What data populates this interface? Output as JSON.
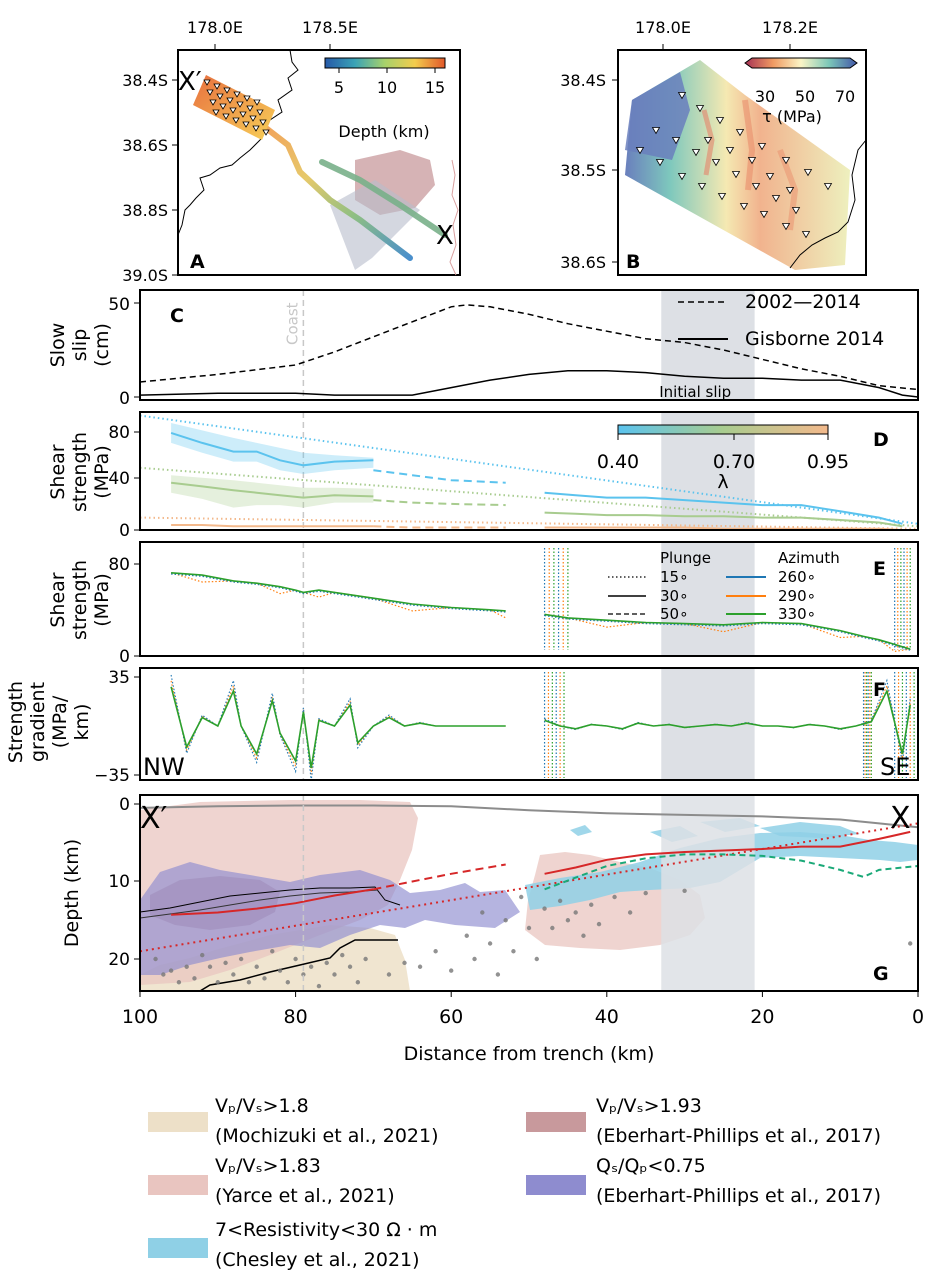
{
  "figure": {
    "panel_letters": [
      "A",
      "B",
      "C",
      "D",
      "E",
      "F",
      "G"
    ],
    "colors": {
      "gisborne": "#000000",
      "lambda_040": "#5bc3ee",
      "lambda_070": "#a8cc8f",
      "lambda_095": "#f3b98c",
      "az260": "#1f77b4",
      "az290": "#ff7f0e",
      "az330": "#2ca02c",
      "trench_line": "#8c8c8c",
      "interface_red": "#d62728",
      "interface_green": "#1aa978",
      "initial_slip_band": "#dde0e5",
      "vpvs18": "#ede0c8",
      "vpvs183": "#e9c5c0",
      "vpvs193": "#c8999c",
      "qsqp": "#8e8ccf",
      "resistivity": "#8fd0e6"
    }
  },
  "maps": {
    "A": {
      "xticks": [
        "178.0E",
        "178.5E"
      ],
      "yticks": [
        "38.4S",
        "38.6S",
        "38.8S",
        "39.0S"
      ],
      "colorbar_ticks": [
        "5",
        "10",
        "15"
      ],
      "colorbar_label": "Depth (km)",
      "endpoint_start": "X′",
      "endpoint_end": "X"
    },
    "B": {
      "xticks": [
        "178.0E",
        "178.2E"
      ],
      "yticks": [
        "38.4S",
        "38.5S",
        "38.6S"
      ],
      "colorbar_ticks": [
        "30",
        "50",
        "70"
      ],
      "colorbar_label": "τ (MPa)"
    }
  },
  "chart_data": [
    {
      "panel": "C",
      "type": "line",
      "ylabel": [
        "Slow",
        "slip",
        "(cm)"
      ],
      "x_axis": "Distance from trench (km)",
      "xlim": [
        100,
        0
      ],
      "ylim": [
        0,
        50
      ],
      "yticks": [
        "0",
        "50"
      ],
      "annotations": {
        "coast": "Coast",
        "initial_slip": "Initial slip"
      },
      "coast_x": 79,
      "initial_slip_range": [
        21,
        33
      ],
      "legend_position": "top-right",
      "series": [
        {
          "name": "2002—2014",
          "style": "dashed",
          "x": [
            100,
            90,
            80,
            75,
            70,
            65,
            60,
            58,
            55,
            50,
            45,
            40,
            35,
            30,
            25,
            20,
            15,
            10,
            5,
            0
          ],
          "y": [
            8,
            12,
            17,
            24,
            32,
            40,
            48,
            49,
            48,
            44,
            39,
            35,
            31,
            29,
            25,
            20,
            15,
            11,
            6,
            4
          ]
        },
        {
          "name": "Gisborne 2014",
          "style": "solid",
          "x": [
            100,
            90,
            80,
            75,
            65,
            60,
            55,
            50,
            45,
            40,
            35,
            30,
            25,
            20,
            15,
            10,
            5,
            2,
            0
          ],
          "y": [
            1,
            2,
            2,
            1,
            1,
            5,
            9,
            12,
            14,
            14,
            13,
            11,
            10,
            10,
            9,
            9,
            5,
            1,
            0
          ]
        }
      ]
    },
    {
      "panel": "D",
      "type": "line",
      "ylabel": [
        "Shear",
        "strength",
        "(MPa)"
      ],
      "xlim": [
        100,
        0
      ],
      "ylim": [
        0,
        90
      ],
      "yticks": [
        "0",
        "40",
        "80"
      ],
      "colorbar_ticks": [
        "0.40",
        "0.70",
        "0.95"
      ],
      "colorbar_label": "λ",
      "series": [
        {
          "lambda": "0.40",
          "x_solid_a": [
            96,
            92,
            88,
            85,
            82,
            79,
            75,
            70
          ],
          "y_solid_a": [
            78,
            70,
            63,
            63,
            56,
            52,
            55,
            56
          ],
          "x_dashed_a": [
            70,
            65,
            60,
            53
          ],
          "y_dashed_a": [
            48,
            44,
            40,
            38
          ],
          "x_solid_b": [
            48,
            44,
            40,
            35,
            30,
            25,
            20,
            15,
            10,
            5,
            2
          ],
          "y_solid_b": [
            30,
            28,
            26,
            26,
            24,
            22,
            20,
            20,
            15,
            10,
            5
          ],
          "x_dotted": [
            100,
            0
          ],
          "y_dotted": [
            92,
            5
          ],
          "band_upper": [
            86,
            80,
            74,
            70,
            66,
            62,
            60,
            58
          ],
          "band_lower": [
            70,
            62,
            55,
            55,
            48,
            45,
            48,
            50
          ]
        },
        {
          "lambda": "0.70",
          "x_solid_a": [
            96,
            92,
            88,
            85,
            82,
            79,
            75,
            70
          ],
          "y_solid_a": [
            38,
            35,
            32,
            30,
            28,
            26,
            28,
            27
          ],
          "x_dashed_a": [
            70,
            65,
            60,
            53
          ],
          "y_dashed_a": [
            24,
            22,
            21,
            20
          ],
          "x_solid_b": [
            48,
            44,
            40,
            35,
            30,
            25,
            20,
            15,
            10,
            5,
            2
          ],
          "y_solid_b": [
            14,
            13,
            12,
            12,
            11,
            11,
            10,
            10,
            8,
            6,
            3
          ],
          "x_dotted": [
            100,
            0
          ],
          "y_dotted": [
            50,
            3
          ],
          "band_upper": [
            44,
            42,
            40,
            38,
            36,
            34,
            34,
            33
          ],
          "band_lower": [
            30,
            25,
            18,
            20,
            20,
            18,
            22,
            22
          ]
        },
        {
          "lambda": "0.95",
          "x_solid_a": [
            96,
            92,
            88,
            85,
            82,
            79,
            75,
            70
          ],
          "y_solid_a": [
            4,
            4,
            3,
            3,
            3,
            3,
            3,
            3
          ],
          "x_dashed_a": [
            70,
            65,
            60,
            53
          ],
          "y_dashed_a": [
            3,
            2,
            2,
            2
          ],
          "x_solid_b": [
            48,
            44,
            40,
            35,
            30,
            25,
            20,
            15,
            10,
            5,
            2
          ],
          "y_solid_b": [
            2,
            2,
            2,
            2,
            2,
            1,
            1,
            1,
            1,
            1,
            0
          ],
          "x_dotted": [
            100,
            0
          ],
          "y_dotted": [
            10,
            1
          ]
        }
      ]
    },
    {
      "panel": "E",
      "type": "line",
      "ylabel": [
        "Shear",
        "strength",
        "(MPa)"
      ],
      "xlim": [
        100,
        0
      ],
      "ylim": [
        0,
        90
      ],
      "yticks": [
        "0",
        "80"
      ],
      "legend": {
        "plunge_title": "Plunge",
        "plunge": [
          "15∘",
          "30∘",
          "50∘"
        ],
        "azimuth_title": "Azimuth",
        "azimuth": [
          "260∘",
          "290∘",
          "330∘"
        ]
      },
      "x": [
        96,
        92,
        88,
        85,
        82,
        80,
        79,
        77,
        75,
        70,
        65,
        60,
        55,
        53,
        48,
        45,
        40,
        35,
        30,
        25,
        20,
        15,
        10,
        7,
        5,
        3,
        1
      ],
      "y": [
        72,
        70,
        65,
        63,
        60,
        57,
        55,
        57,
        55,
        50,
        45,
        42,
        40,
        39,
        36,
        33,
        31,
        29,
        28,
        27,
        29,
        28,
        22,
        17,
        14,
        10,
        6
      ]
    },
    {
      "panel": "F",
      "type": "line",
      "ylabel": [
        "Strength",
        "gradient",
        "(MPa/",
        "km)"
      ],
      "xlim": [
        100,
        0
      ],
      "ylim": [
        -35,
        35
      ],
      "yticks": [
        "35",
        "−35"
      ],
      "direction_labels": {
        "left": "NW",
        "right": "SE"
      },
      "x": [
        96,
        94,
        92,
        90,
        88,
        87,
        85,
        83,
        82,
        80,
        79,
        78,
        77,
        75,
        73,
        72,
        70,
        68,
        66,
        64,
        62,
        60,
        58,
        53,
        48,
        46,
        44,
        42,
        40,
        38,
        36,
        34,
        32,
        30,
        28,
        26,
        24,
        22,
        20,
        18,
        16,
        14,
        12,
        10,
        8,
        6,
        4,
        2,
        1
      ],
      "y": [
        28,
        -15,
        6,
        0,
        25,
        0,
        -20,
        18,
        -5,
        -25,
        10,
        -30,
        4,
        0,
        15,
        -12,
        0,
        6,
        0,
        2,
        0,
        0,
        0,
        0,
        4,
        0,
        -2,
        1,
        0,
        -2,
        2,
        0,
        1,
        -1,
        0,
        1,
        0,
        2,
        0,
        0,
        -1,
        1,
        0,
        -2,
        0,
        3,
        25,
        -20,
        15
      ]
    },
    {
      "panel": "G",
      "type": "area",
      "ylabel": "Depth (km)",
      "xlabel": "Distance from trench (km)",
      "xlim": [
        100,
        0
      ],
      "ylim": [
        24,
        0
      ],
      "yticks": [
        "0",
        "10",
        "20"
      ],
      "xticks": [
        "100",
        "80",
        "60",
        "40",
        "20",
        "0"
      ],
      "endpoint_start": "X′",
      "endpoint_end": "X",
      "trench_profile": {
        "x": [
          100,
          90,
          80,
          70,
          60,
          50,
          40,
          30,
          20,
          10,
          5,
          0
        ],
        "y": [
          0.5,
          0.3,
          0.2,
          0.2,
          0.3,
          0.8,
          1.2,
          1.4,
          1.6,
          2.0,
          2.5,
          3.0
        ]
      },
      "interface_red_solid_a": {
        "x": [
          96,
          90,
          85,
          80,
          75,
          70
        ],
        "y": [
          14.3,
          14.0,
          13.5,
          12.8,
          11.8,
          11.0
        ]
      },
      "interface_red_dashed": {
        "x": [
          70,
          65,
          60,
          53
        ],
        "y": [
          11.0,
          10.0,
          9.0,
          7.8
        ]
      },
      "interface_red_solid_b": {
        "x": [
          48,
          44,
          40,
          35,
          30,
          25,
          20,
          15,
          10,
          5,
          1
        ],
        "y": [
          9.0,
          8.2,
          7.2,
          6.5,
          6.2,
          6.0,
          5.8,
          5.5,
          5.5,
          4.5,
          3.6
        ]
      },
      "interface_red_dotted": {
        "x": [
          100,
          0
        ],
        "y": [
          19,
          2.5
        ]
      },
      "interface_green_dashed": {
        "x": [
          48,
          44,
          40,
          35,
          30,
          25,
          20,
          15,
          10,
          7,
          5,
          2,
          0
        ],
        "y": [
          11,
          9.5,
          8.0,
          7.0,
          6.5,
          6.5,
          6.7,
          7.3,
          8.5,
          9.4,
          8.5,
          8.2,
          8.0
        ]
      },
      "seismicity_points": [
        [
          98,
          20
        ],
        [
          97,
          22
        ],
        [
          96,
          21.5
        ],
        [
          95,
          23
        ],
        [
          94,
          21
        ],
        [
          93,
          22.5
        ],
        [
          92,
          19.5
        ],
        [
          91,
          21
        ],
        [
          90,
          23
        ],
        [
          89,
          20.5
        ],
        [
          88,
          22
        ],
        [
          87,
          20
        ],
        [
          86,
          23
        ],
        [
          85,
          21
        ],
        [
          84,
          22.5
        ],
        [
          83,
          19
        ],
        [
          82,
          21.5
        ],
        [
          81,
          23
        ],
        [
          80,
          20
        ],
        [
          79,
          22
        ],
        [
          78,
          21
        ],
        [
          77,
          23.5
        ],
        [
          76,
          20.5
        ],
        [
          75,
          22
        ],
        [
          74,
          19.5
        ],
        [
          73,
          21
        ],
        [
          72,
          23
        ],
        [
          71,
          20
        ],
        [
          68,
          22
        ],
        [
          66,
          20.5
        ],
        [
          64,
          21
        ],
        [
          62,
          19
        ],
        [
          60,
          21.5
        ],
        [
          58,
          17
        ],
        [
          57,
          20
        ],
        [
          56,
          14
        ],
        [
          55,
          18
        ],
        [
          54,
          22
        ],
        [
          53,
          15
        ],
        [
          52,
          19
        ],
        [
          51,
          12
        ],
        [
          50,
          16
        ],
        [
          49,
          20
        ],
        [
          48,
          13.5
        ],
        [
          47,
          16
        ],
        [
          46,
          12.5
        ],
        [
          45,
          15
        ],
        [
          44,
          14
        ],
        [
          43,
          17
        ],
        [
          42,
          13
        ],
        [
          41,
          15.5
        ],
        [
          39,
          12
        ],
        [
          37,
          14
        ],
        [
          35,
          11.5
        ],
        [
          30,
          11.2
        ],
        [
          1,
          18
        ]
      ],
      "legend": [
        {
          "name": "Vₚ/Vₛ>1.8",
          "citation": "(Mochizuki et al., 2021)"
        },
        {
          "name": "Vₚ/Vₛ>1.83",
          "citation": "(Yarce et al., 2021)"
        },
        {
          "name": "7<Resistivity<30 Ω · m",
          "citation": "(Chesley et al., 2021)"
        },
        {
          "name": "Vₚ/Vₛ>1.93",
          "citation": "(Eberhart-Phillips et al., 2017)"
        },
        {
          "name": "Qₛ/Qₚ<0.75",
          "citation": "(Eberhart-Phillips et al., 2017)"
        }
      ]
    }
  ]
}
